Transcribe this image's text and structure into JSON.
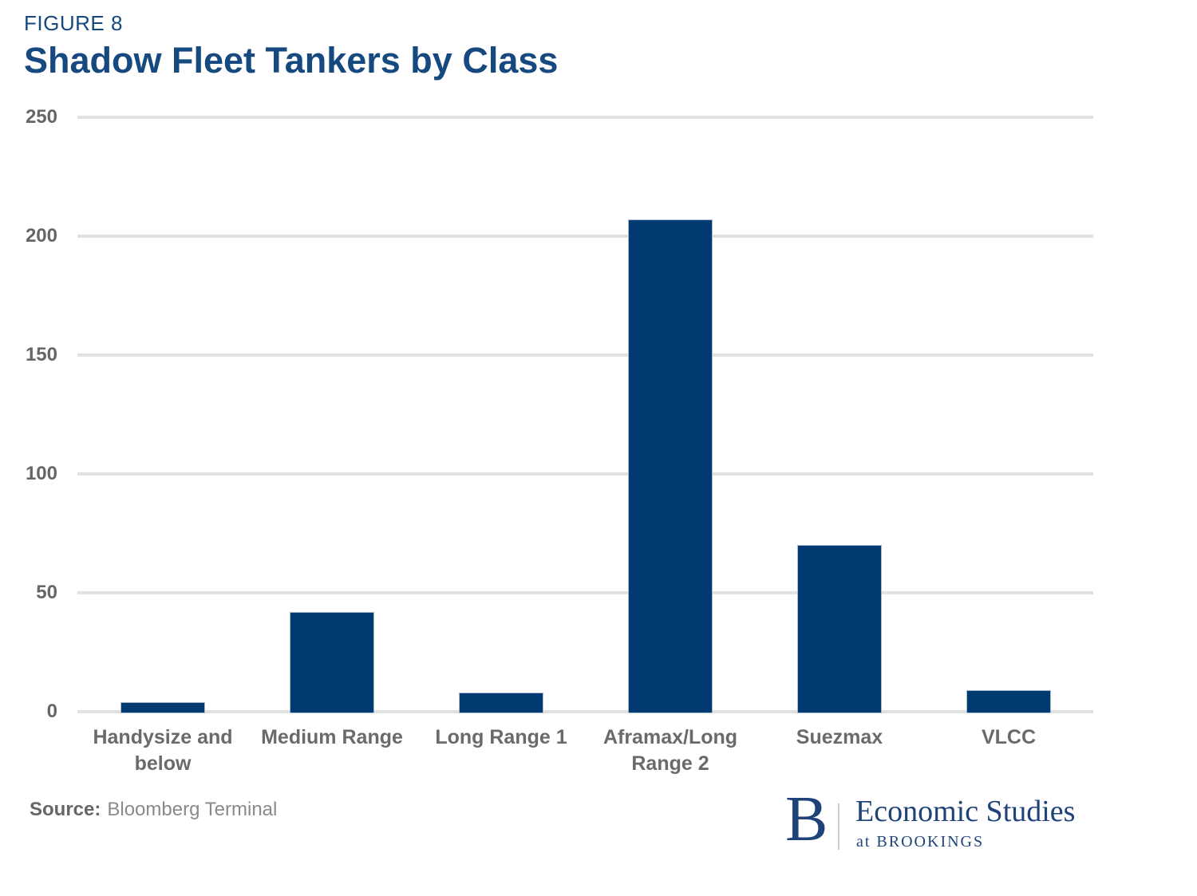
{
  "figure_label": "FIGURE 8",
  "title": "Shadow Fleet Tankers by Class",
  "source": {
    "label": "Source:",
    "text": "Bloomberg Terminal"
  },
  "logo": {
    "b": "B",
    "line1": "Economic Studies",
    "line2": "at BROOKINGS"
  },
  "colors": {
    "bar": "#003a70",
    "bar_border": "#a9bacd",
    "title": "#154980",
    "gridline": "#e1e1e1",
    "y_tick_label": "#666666",
    "x_axis_label": "#6a6a6a",
    "source_label": "#666666",
    "source_text": "#8a8a8a",
    "logo": "#1f4379"
  },
  "chart_data": {
    "type": "bar",
    "categories": [
      "Handysize and below",
      "Medium Range",
      "Long Range 1",
      "Aframax/Long Range 2",
      "Suezmax",
      "VLCC"
    ],
    "values": [
      4,
      42,
      8,
      207,
      70,
      9
    ],
    "title": "Shadow Fleet Tankers by Class",
    "xlabel": "",
    "ylabel": "",
    "ylim": [
      0,
      250
    ],
    "yticks": [
      0,
      50,
      100,
      150,
      200,
      250
    ],
    "grid": true,
    "gridlines": "horizontal",
    "legend": false,
    "bar_color": "#003a70"
  }
}
